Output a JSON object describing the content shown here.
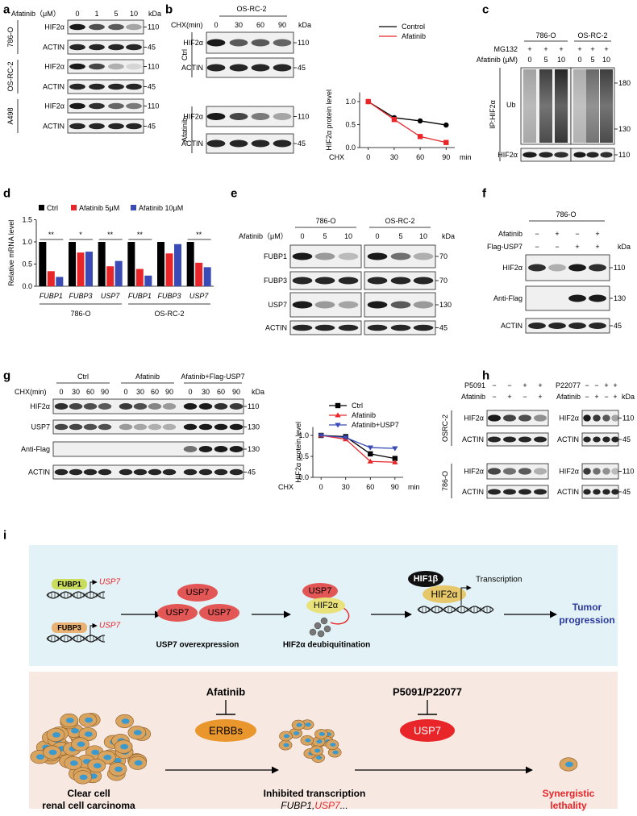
{
  "panels": {
    "a": {
      "label": "a",
      "header": "Afatinib（μM）",
      "lanes": [
        "0",
        "1",
        "5",
        "10"
      ],
      "kda": "kDa",
      "groups": [
        {
          "name": "786-O",
          "rows": [
            {
              "name": "HIF2α",
              "marker": "110"
            },
            {
              "name": "ACTIN",
              "marker": "45"
            }
          ]
        },
        {
          "name": "OS-RC-2",
          "rows": [
            {
              "name": "HIF2α",
              "marker": "110"
            },
            {
              "name": "ACTIN",
              "marker": "45"
            }
          ]
        },
        {
          "name": "A498",
          "rows": [
            {
              "name": "HIF2α",
              "marker": "110"
            },
            {
              "name": "ACTIN",
              "marker": "45"
            }
          ]
        }
      ]
    },
    "b": {
      "label": "b",
      "cell_line": "OS-RC-2",
      "header": "CHX(min)",
      "lanes": [
        "0",
        "30",
        "60",
        "90"
      ],
      "kda": "kDa",
      "groups": [
        {
          "name": "Ctrl",
          "rows": [
            {
              "name": "HIF2α",
              "marker": "110"
            },
            {
              "name": "ACTIN",
              "marker": "45"
            }
          ]
        },
        {
          "name": "Afatinib",
          "rows": [
            {
              "name": "HIF2α",
              "marker": "110"
            },
            {
              "name": "ACTIN",
              "marker": "45"
            }
          ]
        }
      ]
    },
    "c": {
      "label": "c",
      "mg132": "MG132",
      "afatinib": "Afatinib (μM)",
      "groups": [
        {
          "name": "786-O",
          "mg132_signs": [
            "+",
            "+",
            "+"
          ],
          "doses": [
            "0",
            "5",
            "10"
          ]
        },
        {
          "name": "OS-RC-2",
          "mg132_signs": [
            "+",
            "+",
            "+"
          ],
          "doses": [
            "0",
            "5",
            "10"
          ]
        }
      ],
      "ip": "IP:HIF2α",
      "ub": "Ub",
      "hif": "HIF2α",
      "markers": [
        "180",
        "130",
        "110"
      ]
    },
    "d": {
      "label": "d"
    },
    "e": {
      "label": "e",
      "header": "Afatinib（μM）",
      "kda": "kDa",
      "groups": [
        {
          "name": "786-O",
          "lanes": [
            "0",
            "5",
            "10"
          ]
        },
        {
          "name": "OS-RC-2",
          "lanes": [
            "0",
            "5",
            "10"
          ]
        }
      ],
      "rows": [
        {
          "name": "FUBP1",
          "marker": "70"
        },
        {
          "name": "FUBP3",
          "marker": "70"
        },
        {
          "name": "USP7",
          "marker": "130"
        },
        {
          "name": "ACTIN",
          "marker": "45"
        }
      ]
    },
    "f": {
      "label": "f",
      "cell_line": "786-O",
      "kda": "kDa",
      "treatments": [
        {
          "name": "Afatinib",
          "signs": [
            "−",
            "+",
            "−",
            "+"
          ]
        },
        {
          "name": "Flag-USP7",
          "signs": [
            "−",
            "−",
            "+",
            "+"
          ]
        }
      ],
      "rows": [
        {
          "name": "HIF2α",
          "marker": "110"
        },
        {
          "name": "Anti-Flag",
          "marker": "130"
        },
        {
          "name": "ACTIN",
          "marker": "45"
        }
      ]
    },
    "g": {
      "label": "g",
      "header": "CHX(min)",
      "kda": "kDa",
      "groups": [
        {
          "name": "Ctrl",
          "lanes": [
            "0",
            "30",
            "60",
            "90"
          ]
        },
        {
          "name": "Afatinib",
          "lanes": [
            "0",
            "30",
            "60",
            "90"
          ]
        },
        {
          "name": "Afatinib+Flag-USP7",
          "lanes": [
            "0",
            "30",
            "60",
            "90"
          ]
        }
      ],
      "rows": [
        {
          "name": "HIF2α",
          "marker": "110"
        },
        {
          "name": "USP7",
          "marker": "130"
        },
        {
          "name": "Anti-Flag",
          "marker": "130"
        },
        {
          "name": "ACTIN",
          "marker": "45"
        }
      ]
    },
    "h": {
      "label": "h",
      "kda": "kDa",
      "sides": [
        {
          "treatments": [
            {
              "name": "P5091",
              "signs": [
                "−",
                "−",
                "+",
                "+"
              ]
            },
            {
              "name": "Afatinib",
              "signs": [
                "−",
                "+",
                "−",
                "+"
              ]
            }
          ]
        },
        {
          "treatments": [
            {
              "name": "P22077",
              "signs": [
                "−",
                "−",
                "+",
                "+"
              ]
            },
            {
              "name": "Afatinib",
              "signs": [
                "−",
                "+",
                "−",
                "+"
              ]
            }
          ]
        }
      ],
      "groups": [
        {
          "name": "OSRC-2",
          "rows": [
            {
              "name": "HIF2α",
              "marker": "110"
            },
            {
              "name": "ACTIN",
              "marker": "45"
            }
          ]
        },
        {
          "name": "786-O",
          "rows": [
            {
              "name": "HIF2α",
              "marker": "110"
            },
            {
              "name": "ACTIN",
              "marker": "45"
            }
          ]
        }
      ]
    },
    "i": {
      "label": "i",
      "genes": [
        {
          "tf": "FUBP1",
          "target": "USP7"
        },
        {
          "tf": "FUBP3",
          "target": "USP7"
        }
      ],
      "usp7_copies": [
        "USP7",
        "USP7",
        "USP7"
      ],
      "step1": "USP7 overexpression",
      "complex": [
        "USP7",
        "HIF2α"
      ],
      "step2": "HIF2α deubiquitination",
      "hif1b": "HIF1β",
      "hif2a": "HIF2α",
      "transcription": "Transcription",
      "outcome": [
        "Tumor",
        "progression"
      ],
      "drug1": "Afatinib",
      "target1": "ERBBs",
      "drug2": "P5091/P22077",
      "target2": "USP7",
      "start": [
        "Clear cell",
        "renal cell carcinoma"
      ],
      "middle": "Inhibited transcription",
      "middle_genes": [
        "FUBP1",
        ",",
        "USP7",
        "..."
      ],
      "end": [
        "Synergistic",
        "lethality"
      ]
    }
  },
  "chart_data": [
    {
      "type": "line",
      "ylabel": "HIF2α protein level",
      "xlabel": "CHX",
      "xunit": "min",
      "x": [
        0,
        30,
        60,
        90
      ],
      "xlim": [
        -10,
        100
      ],
      "ylim": [
        0,
        1.2
      ],
      "xticks": [
        0,
        30,
        60,
        90
      ],
      "yticks": [
        {
          "value": 0,
          "label": "0.0"
        },
        {
          "value": 0.5,
          "label": "0.5"
        },
        {
          "value": 1,
          "label": "1.0"
        }
      ],
      "series": [
        {
          "name": "Control",
          "color": "#000000",
          "values": [
            1,
            0.65,
            0.58,
            0.49
          ]
        },
        {
          "name": "Afatinib",
          "color": "#e8262a",
          "values": [
            1,
            0.61,
            0.24,
            0.11
          ]
        }
      ]
    },
    {
      "type": "bar",
      "ylabel": "Relative mRNA level",
      "categories": [
        "FUBP1",
        "FUBP3",
        "USP7",
        "FUBP1",
        "FUBP3",
        "USP7"
      ],
      "groups": [
        "786-O",
        "OS-RC-2"
      ],
      "ylim": [
        0,
        1.5
      ],
      "yticks": [
        {
          "value": 0,
          "label": "0.0"
        },
        {
          "value": 0.5,
          "label": "0.5"
        },
        {
          "value": 1,
          "label": "1.0"
        },
        {
          "value": 1.5,
          "label": "1.5"
        }
      ],
      "series": [
        {
          "name": "Ctrl",
          "color": "#000000",
          "values": [
            1,
            1,
            1,
            1,
            1,
            1
          ]
        },
        {
          "name": "Afatinib 5μM",
          "color": "#e8262a",
          "values": [
            0.34,
            0.76,
            0.45,
            0.39,
            0.74,
            0.53
          ]
        },
        {
          "name": "Afatinib 10μM",
          "color": "#3a4bb5",
          "values": [
            0.21,
            0.78,
            0.57,
            0.24,
            0.95,
            0.43
          ]
        }
      ],
      "annotations": [
        "**",
        "*",
        "**",
        "**",
        "**"
      ]
    },
    {
      "type": "line",
      "ylabel": "HIF2α protein level",
      "xlabel": "CHX",
      "xunit": "min",
      "x": [
        0,
        30,
        60,
        90
      ],
      "xlim": [
        -10,
        100
      ],
      "ylim": [
        0,
        1.2
      ],
      "xticks": [
        0,
        30,
        60,
        90
      ],
      "yticks": [
        {
          "value": 0,
          "label": "0.0"
        },
        {
          "value": 0.5,
          "label": "0.5"
        },
        {
          "value": 1,
          "label": "1.0"
        }
      ],
      "series": [
        {
          "name": "Ctrl",
          "color": "#000000",
          "values": [
            1,
            0.97,
            0.56,
            0.45
          ]
        },
        {
          "name": "Afatinib",
          "color": "#e8262a",
          "values": [
            1,
            0.91,
            0.38,
            0.36
          ]
        },
        {
          "name": "Afatinib+USP7",
          "color": "#3a4bb5",
          "values": [
            1,
            0.95,
            0.71,
            0.69
          ]
        }
      ]
    }
  ]
}
